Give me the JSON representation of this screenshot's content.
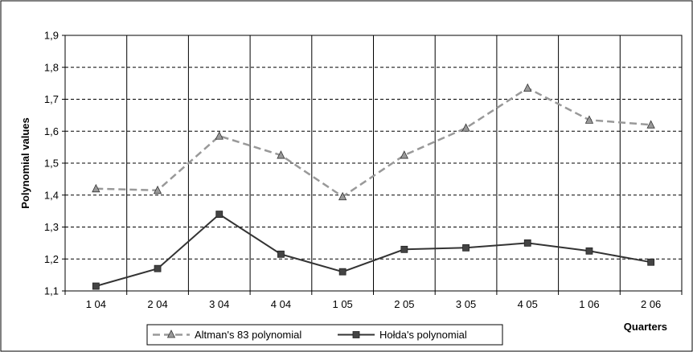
{
  "chart_data": {
    "type": "line",
    "title": "",
    "xlabel": "Quarters",
    "ylabel": "Polynomial values",
    "categories": [
      "1 04",
      "2 04",
      "3 04",
      "4 04",
      "1 05",
      "2 05",
      "3 05",
      "4 05",
      "1 06",
      "2 06"
    ],
    "ylim": [
      1.1,
      1.9
    ],
    "yticks": [
      "1,1",
      "1,2",
      "1,3",
      "1,4",
      "1,5",
      "1,6",
      "1,7",
      "1,8",
      "1,9"
    ],
    "grid": true,
    "legend_position": "bottom",
    "series": [
      {
        "name": "Altman's 83 polynomial",
        "values": [
          1.42,
          1.415,
          1.585,
          1.525,
          1.395,
          1.525,
          1.61,
          1.735,
          1.635,
          1.62
        ],
        "color": "#999999",
        "line_style": "dashed",
        "marker": "triangle"
      },
      {
        "name": "Hołda's polynomial",
        "values": [
          1.115,
          1.17,
          1.34,
          1.215,
          1.16,
          1.23,
          1.235,
          1.25,
          1.225,
          1.19
        ],
        "color": "#333333",
        "line_style": "solid",
        "marker": "square"
      }
    ]
  }
}
